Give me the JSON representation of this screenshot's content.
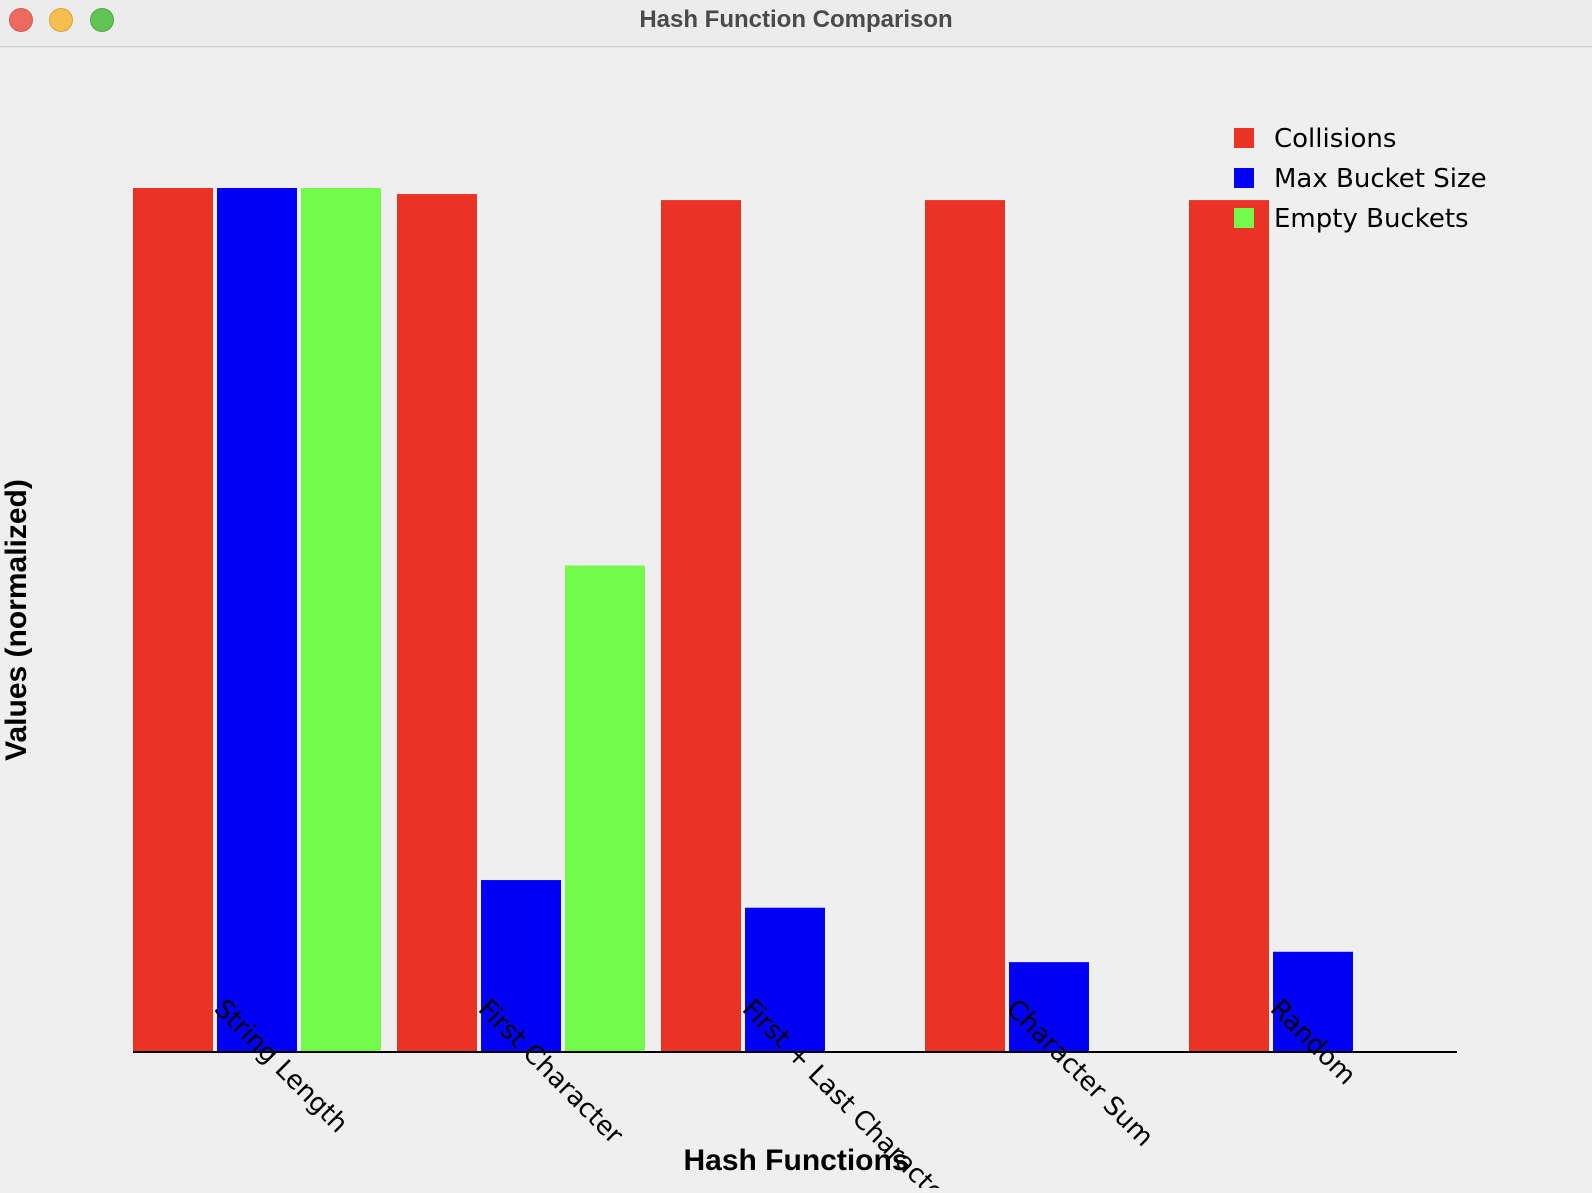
{
  "window": {
    "title": "Hash Function Comparison"
  },
  "colors": {
    "collisions": "#ea3325",
    "max_bucket_size": "#0000f5",
    "empty_buckets": "#75fb4c",
    "axis": "#000000",
    "background": "#efefef"
  },
  "chart_data": {
    "type": "bar",
    "title": "Hash Function Comparison",
    "xlabel": "Hash Functions",
    "ylabel": "Values (normalized)",
    "categories": [
      "String Length",
      "First Character",
      "First + Last Character",
      "Character Sum",
      "Random"
    ],
    "series": [
      {
        "name": "Collisions",
        "color": "#ea3325",
        "values": [
          1.0,
          0.993,
          0.986,
          0.986,
          0.986
        ]
      },
      {
        "name": "Max Bucket Size",
        "color": "#0000f5",
        "values": [
          1.0,
          0.199,
          0.167,
          0.104,
          0.116
        ]
      },
      {
        "name": "Empty Buckets",
        "color": "#75fb4c",
        "values": [
          1.0,
          0.563,
          0.0,
          0.0,
          0.0
        ]
      }
    ],
    "ylim": [
      0,
      1.0
    ],
    "grid": false,
    "legend_position": "top-right",
    "x_tick_rotation": "45deg"
  }
}
